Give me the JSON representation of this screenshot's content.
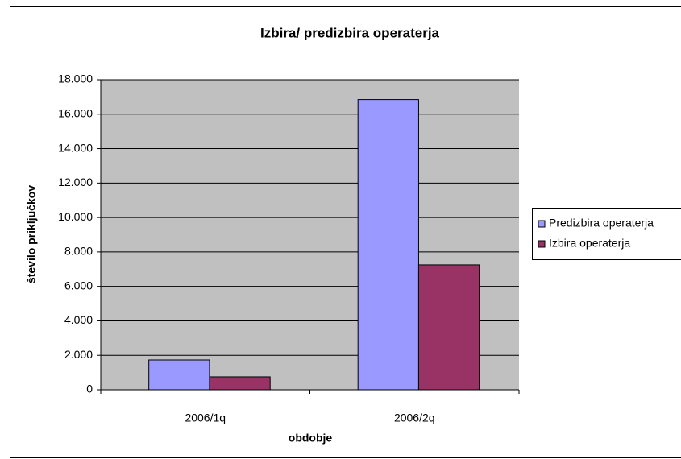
{
  "chart_data": {
    "type": "bar",
    "title": "Izbira/ predizbira operaterja",
    "x_label": "obdobje",
    "y_label": "število priključkov",
    "categories": [
      "2006/1q",
      "2006/2q"
    ],
    "series": [
      {
        "name": "Predizbira operaterja",
        "color": "#9999ff",
        "values": [
          1730,
          16850
        ]
      },
      {
        "name": "Izbira operaterja",
        "color": "#993366",
        "values": [
          750,
          7250
        ]
      }
    ],
    "ylim": [
      0,
      18000
    ],
    "yticks": [
      0,
      {
        "value": 2000,
        "label": "2.000"
      },
      {
        "value": 4000,
        "label": "4.000"
      },
      {
        "value": 6000,
        "label": "6.000"
      },
      {
        "value": 8000,
        "label": "8.000"
      },
      {
        "value": 10000,
        "label": "10.000"
      },
      {
        "value": 12000,
        "label": "12.000"
      },
      {
        "value": 14000,
        "label": "14.000"
      },
      {
        "value": 16000,
        "label": "16.000"
      },
      {
        "value": 18000,
        "label": "18.000"
      }
    ],
    "grid": true,
    "legend": "right"
  }
}
